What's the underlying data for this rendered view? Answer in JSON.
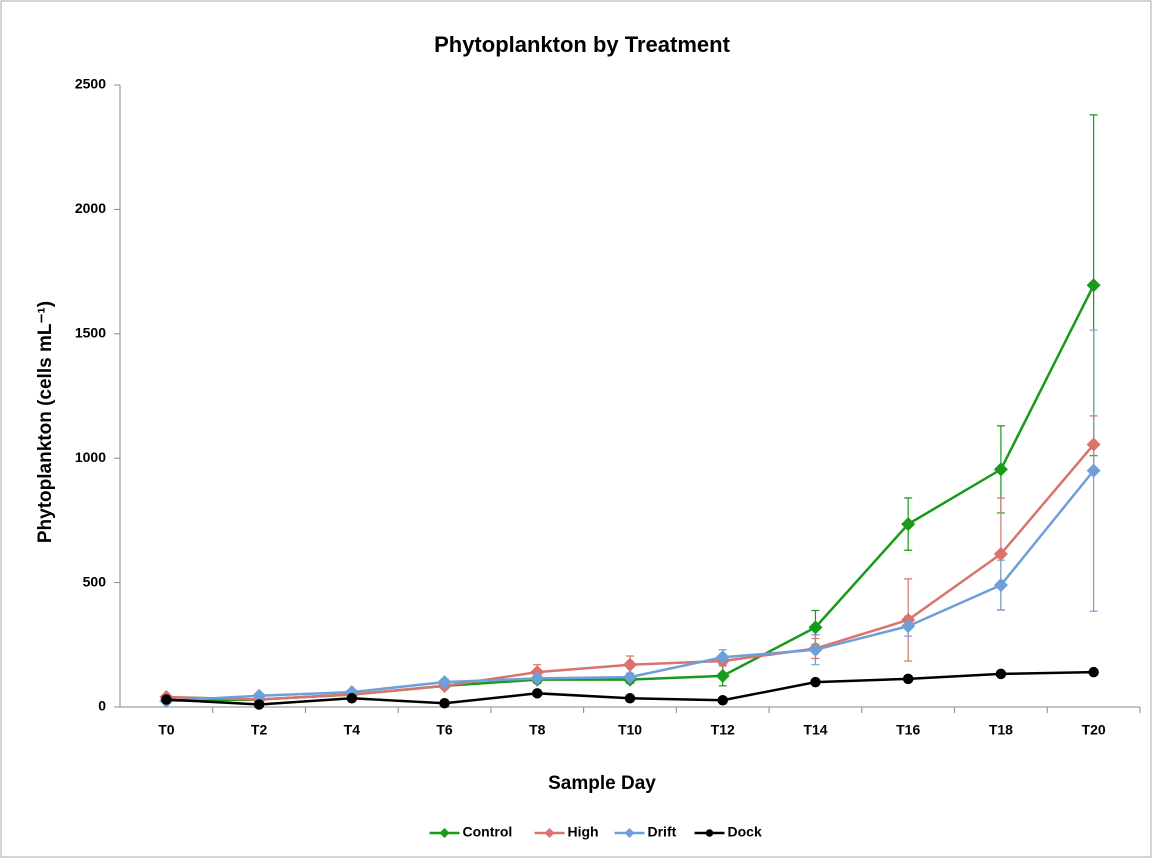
{
  "chart_data": {
    "type": "line",
    "title": "Phytoplankton by Treatment",
    "x_label": "Sample Day",
    "y_label": "Phytoplankton (cells mL⁻¹)",
    "categories": [
      "T0",
      "T2",
      "T4",
      "T6",
      "T8",
      "T10",
      "T12",
      "T14",
      "T16",
      "T18",
      "T20"
    ],
    "ylim": [
      0,
      2500
    ],
    "yticks": [
      0,
      500,
      1000,
      1500,
      2000,
      2500
    ],
    "grid": false,
    "legend": "bottom",
    "series": [
      {
        "name": "Control",
        "color": "#1a9a1a",
        "marker": "diamond",
        "values": [
          25,
          30,
          50,
          85,
          110,
          110,
          125,
          320,
          735,
          955,
          1695
        ],
        "errors": [
          8,
          8,
          10,
          12,
          15,
          15,
          40,
          68,
          105,
          175,
          685
        ]
      },
      {
        "name": "High",
        "color": "#d9736b",
        "marker": "diamond",
        "values": [
          40,
          30,
          50,
          85,
          140,
          170,
          185,
          235,
          350,
          615,
          1055
        ],
        "errors": [
          8,
          8,
          10,
          12,
          30,
          35,
          20,
          40,
          165,
          225,
          115
        ]
      },
      {
        "name": "Drift",
        "color": "#6f9fd8",
        "marker": "diamond",
        "values": [
          25,
          45,
          60,
          100,
          115,
          120,
          200,
          230,
          325,
          490,
          950
        ],
        "errors": [
          8,
          8,
          10,
          12,
          15,
          15,
          30,
          60,
          40,
          100,
          565
        ]
      },
      {
        "name": "Dock",
        "color": "#000000",
        "marker": "circle",
        "values": [
          30,
          10,
          35,
          15,
          55,
          35,
          27,
          100,
          113,
          133,
          140
        ]
      }
    ]
  }
}
